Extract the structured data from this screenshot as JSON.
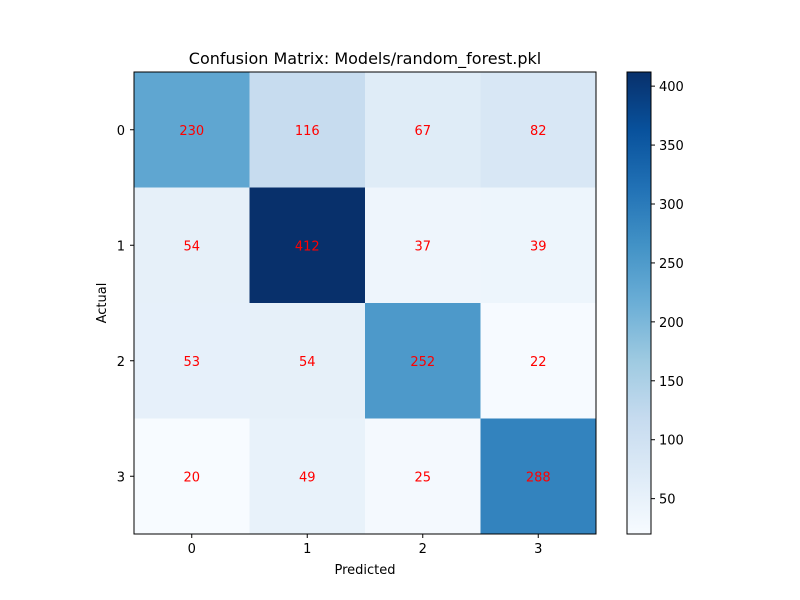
{
  "chart_data": {
    "type": "heatmap",
    "title": "Confusion Matrix: Models/random_forest.pkl",
    "xlabel": "Predicted",
    "ylabel": "Actual",
    "x_categories": [
      "0",
      "1",
      "2",
      "3"
    ],
    "y_categories": [
      "0",
      "1",
      "2",
      "3"
    ],
    "values": [
      [
        230,
        116,
        67,
        82
      ],
      [
        54,
        412,
        37,
        39
      ],
      [
        53,
        54,
        252,
        22
      ],
      [
        20,
        49,
        25,
        288
      ]
    ],
    "colorbar": {
      "min": 20,
      "max": 412,
      "ticks": [
        "50",
        "100",
        "150",
        "200",
        "250",
        "300",
        "350",
        "400"
      ],
      "colormap": "Blues"
    },
    "annotation_color": "#ff0000",
    "grid": false
  }
}
